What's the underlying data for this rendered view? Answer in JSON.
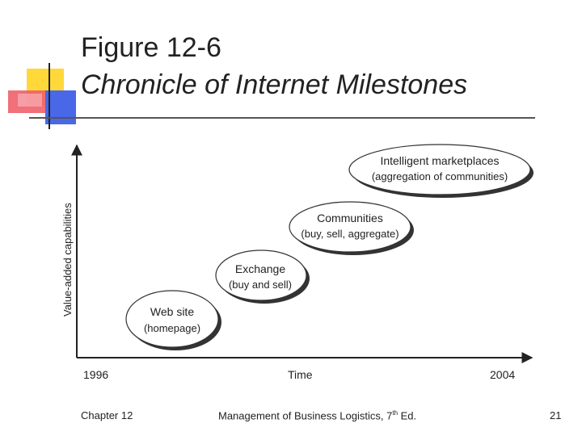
{
  "title": {
    "line1": "Figure 12-6",
    "line2": "Chronicle of Internet Milestones"
  },
  "diagram": {
    "y_axis_label": "Value-added capabilities",
    "x_axis_label": "Time",
    "x_start": "1996",
    "x_end": "2004",
    "milestones": [
      {
        "line1": "Web site",
        "line2": "(homepage)"
      },
      {
        "line1": "Exchange",
        "line2": "(buy and sell)"
      },
      {
        "line1": "Communities",
        "line2": "(buy, sell, aggregate)"
      },
      {
        "line1": "Intelligent marketplaces",
        "line2": "(aggregation of communities)"
      }
    ]
  },
  "footer": {
    "chapter": "Chapter 12",
    "book_prefix": "Management of Business Logistics, 7",
    "book_sup": "th",
    "book_suffix": " Ed.",
    "page_number": "21"
  }
}
